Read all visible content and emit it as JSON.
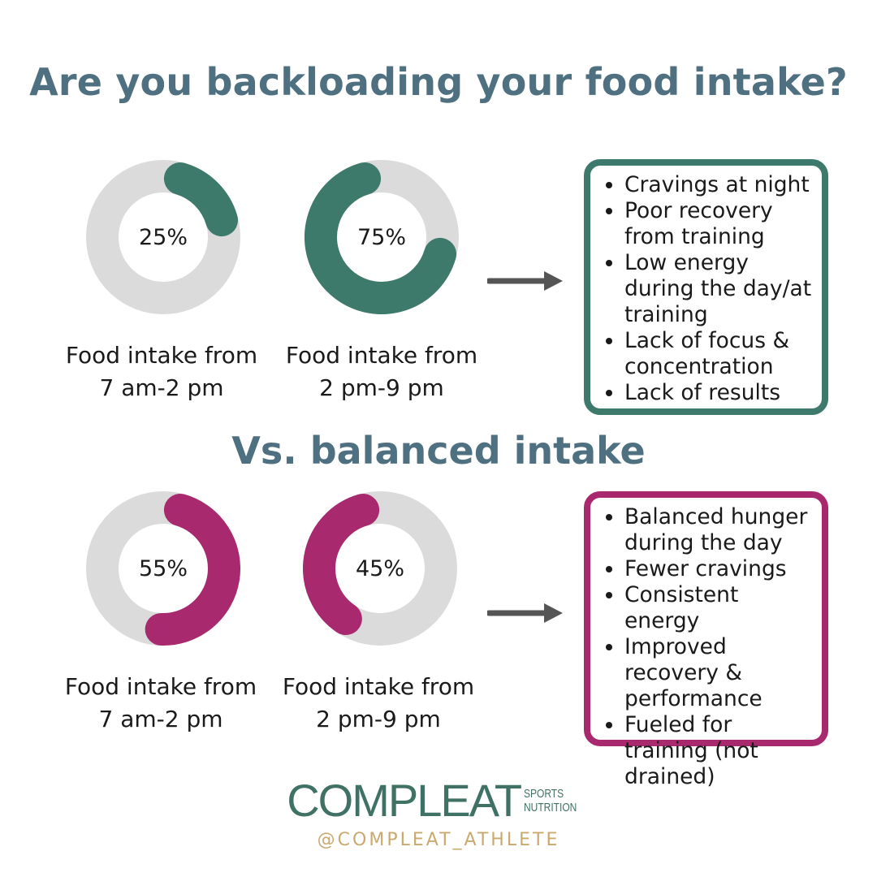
{
  "title": "Are you backloading your food intake?",
  "subtitle": "Vs. balanced intake",
  "colors": {
    "backloaded": "#3e7a6b",
    "balanced": "#a8296e",
    "track": "#dbdbdb",
    "title": "#4e7080",
    "arrow": "#555555",
    "handle": "#c9a96e"
  },
  "chart_data": [
    {
      "type": "pie",
      "group": "backloaded",
      "categories": [
        "Food intake from 7 am-2 pm",
        "Food intake from 2 pm-9 pm"
      ],
      "values": [
        25,
        75
      ],
      "unit": "%"
    },
    {
      "type": "pie",
      "group": "balanced",
      "categories": [
        "Food intake from 7 am-2 pm",
        "Food intake from 2 pm-9 pm"
      ],
      "values": [
        55,
        45
      ],
      "unit": "%"
    }
  ],
  "donuts": [
    {
      "label": "25%",
      "value": 25,
      "start": 0,
      "caption1": "Food intake from",
      "caption2": "7 am-2 pm"
    },
    {
      "label": "75%",
      "value": 75,
      "start": 25,
      "caption1": "Food intake from",
      "caption2": "2 pm-9 pm"
    },
    {
      "label": "55%",
      "value": 55,
      "start": 0,
      "caption1": "Food intake from",
      "caption2": "7 am-2 pm"
    },
    {
      "label": "45%",
      "value": 45,
      "start": 55,
      "caption1": "Food intake from",
      "caption2": "2 pm-9 pm"
    }
  ],
  "backloaded_effects": [
    "Cravings at night",
    "Poor recovery from training",
    "Low energy during the day/at training",
    "Lack of focus & concentration",
    "Lack of results"
  ],
  "balanced_effects": [
    "Balanced hunger during the day",
    "Fewer cravings",
    "Consistent energy",
    "Improved recovery & performance",
    "Fueled for training (not drained)"
  ],
  "brand": {
    "name": "COMPLEAT",
    "tag1": "SPORTS",
    "tag2": "NUTRITION",
    "handle": "@COMPLEAT_ATHLETE"
  }
}
